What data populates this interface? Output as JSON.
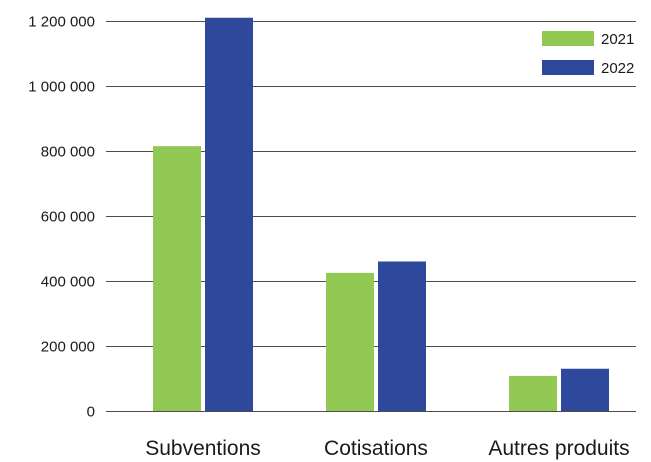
{
  "chart_data": {
    "type": "bar",
    "title": "",
    "xlabel": "",
    "ylabel": "",
    "categories": [
      "Subventions",
      "Cotisations",
      "Autres produits"
    ],
    "series": [
      {
        "name": "2021",
        "color": "#92c954",
        "values": [
          815000,
          425000,
          108000
        ]
      },
      {
        "name": "2022",
        "color": "#2e489b",
        "values": [
          1210000,
          460000,
          130000
        ]
      }
    ],
    "y_ticks": [
      0,
      200000,
      400000,
      600000,
      800000,
      1000000,
      1200000
    ],
    "y_tick_labels": [
      "0",
      "200 000",
      "400 000",
      "600 000",
      "800 000",
      "1 000 000",
      "1 200 000"
    ],
    "ylim": [
      0,
      1200000
    ],
    "grid": true,
    "legend_position": "top-right"
  }
}
